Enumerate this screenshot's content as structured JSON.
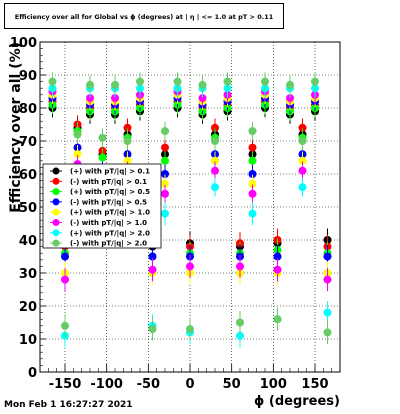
{
  "chart_data": {
    "type": "scatter",
    "title": "Efficiency over all for Global vs ϕ (degrees) at | η | <= 1.0 at pT > 0.11",
    "xlabel": "ϕ (degrees)",
    "ylabel": "Efficiency over all (%)",
    "xlim": [
      -180,
      180
    ],
    "ylim": [
      0,
      100
    ],
    "xticks": [
      -150,
      -100,
      -50,
      0,
      50,
      100,
      150
    ],
    "yticks": [
      0,
      10,
      20,
      30,
      40,
      50,
      60,
      70,
      80,
      90,
      100
    ],
    "grid": true,
    "legend_position": "left-middle",
    "x": [
      -165,
      -150,
      -135,
      -120,
      -105,
      -90,
      -75,
      -60,
      -45,
      -30,
      -15,
      0,
      15,
      30,
      45,
      60,
      75,
      90,
      105,
      120,
      135,
      150,
      165
    ],
    "series": [
      {
        "name": "(+) with pT/|q| > 0.1",
        "color": "#000000",
        "values": [
          80,
          39,
          74,
          78,
          66,
          78,
          72,
          79,
          38,
          66,
          80,
          39,
          78,
          72,
          79,
          38,
          66,
          80,
          39,
          78,
          72,
          79,
          40
        ]
      },
      {
        "name": "(-) with pT/|q| > 0.1",
        "color": "#ff0000",
        "values": [
          82,
          38,
          75,
          80,
          67,
          80,
          74,
          81,
          39,
          68,
          82,
          38,
          80,
          74,
          81,
          39,
          68,
          82,
          40,
          80,
          74,
          81,
          38
        ]
      },
      {
        "name": "(+) with pT/|q| > 0.5",
        "color": "#00ff00",
        "values": [
          81,
          36,
          73,
          79,
          65,
          79,
          71,
          80,
          35,
          64,
          81,
          36,
          79,
          71,
          80,
          36,
          64,
          81,
          37,
          79,
          71,
          80,
          36
        ]
      },
      {
        "name": "(-) with pT/|q| > 0.5",
        "color": "#0000ff",
        "values": [
          83,
          35,
          68,
          81,
          61,
          81,
          66,
          82,
          35,
          60,
          83,
          35,
          81,
          66,
          82,
          35,
          60,
          83,
          35,
          81,
          66,
          82,
          35
        ]
      },
      {
        "name": "(+) with pT/|q| > 1.0",
        "color": "#ffff00",
        "values": [
          84,
          30,
          66,
          82,
          58,
          82,
          64,
          83,
          30,
          57,
          84,
          30,
          82,
          64,
          83,
          30,
          57,
          84,
          30,
          82,
          64,
          83,
          30
        ]
      },
      {
        "name": "(-) with pT/|q| > 1.0",
        "color": "#ff00ff",
        "values": [
          85,
          28,
          63,
          83,
          55,
          83,
          61,
          84,
          31,
          54,
          85,
          32,
          83,
          61,
          84,
          32,
          54,
          85,
          31,
          83,
          61,
          84,
          28
        ]
      },
      {
        "name": "(+) with pT/|q| > 2.0",
        "color": "#00ffff",
        "values": [
          86,
          11,
          58,
          86,
          50,
          86,
          56,
          86,
          14,
          48,
          86,
          12,
          86,
          56,
          86,
          11,
          48,
          86,
          16,
          86,
          56,
          86,
          18
        ]
      },
      {
        "name": "(-) with pT/|q| > 2.0",
        "color": "#66cc66",
        "values": [
          88,
          14,
          72,
          87,
          71,
          87,
          70,
          88,
          13,
          73,
          88,
          13,
          87,
          70,
          88,
          15,
          73,
          88,
          16,
          87,
          70,
          88,
          12
        ]
      }
    ],
    "legend_entries": [
      "(+) with pT/|q| > 0.1",
      "(-) with pT/|q| > 0.1",
      "(+) with pT/|q| > 0.5",
      "(-) with pT/|q| > 0.5",
      "(+) with pT/|q| > 1.0",
      "(-) with pT/|q| > 1.0",
      "(+) with pT/|q| > 2.0",
      "(-) with pT/|q| > 2.0"
    ]
  },
  "footer": {
    "timestamp": "Mon Feb  1 16:27:27 2021"
  }
}
